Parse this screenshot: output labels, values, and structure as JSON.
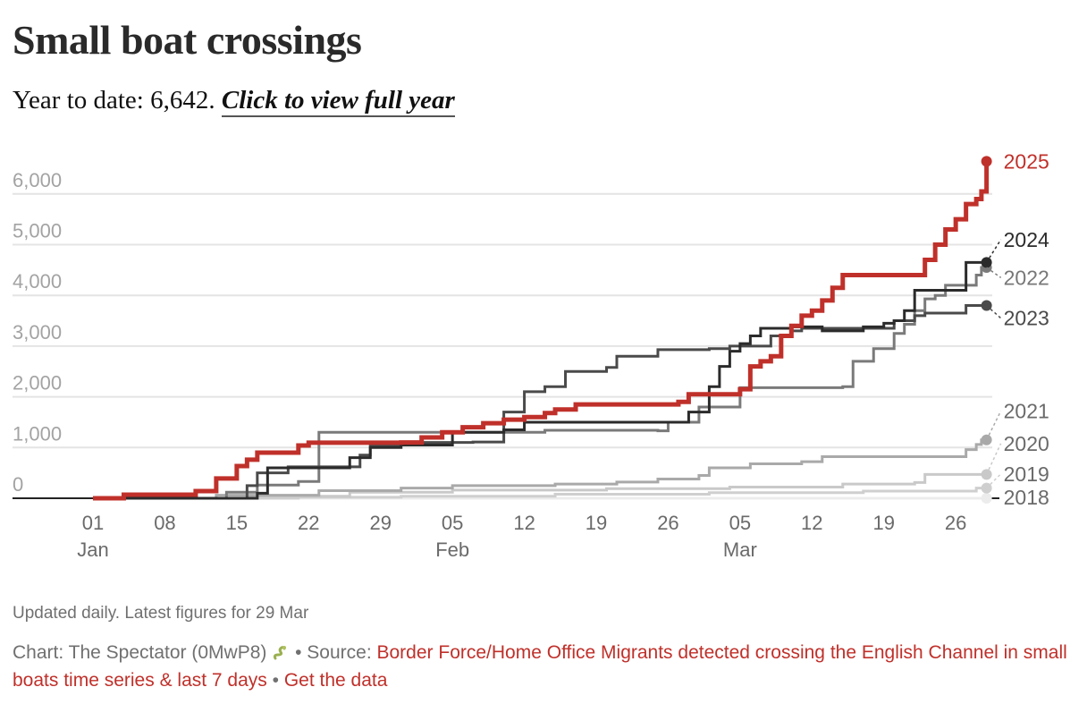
{
  "header": {
    "title": "Small boat crossings",
    "ytd_prefix": "Year to date: 6,642.",
    "view_full_year_link": "Click to view full year"
  },
  "footer": {
    "note": "Updated daily. Latest figures for 29 Mar",
    "credit_prefix": "Chart: The Spectator (0MwP8)",
    "snake_icon": "snake-icon",
    "source_label": "• Source:",
    "source_link": "Border Force/Home Office Migrants detected crossing the English Channel in small boats time series & last 7 days",
    "separator": "•",
    "get_data_link": "Get the data"
  },
  "chart_data": {
    "type": "line",
    "title": "Small boat crossings",
    "subtitle": "Year to date: 6,642",
    "xlabel": "",
    "ylabel": "",
    "step": true,
    "x_unit": "day of year (0 = 01 Jan)",
    "xlim": [
      0,
      87
    ],
    "ylim": [
      0,
      6500
    ],
    "grid": true,
    "yticks": [
      0,
      1000,
      2000,
      3000,
      4000,
      5000,
      6000
    ],
    "ytick_labels": [
      "0",
      "1,000",
      "2,000",
      "3,000",
      "4,000",
      "5,000",
      "6,000"
    ],
    "xticks": [
      {
        "day": 0,
        "label": "01",
        "month": "Jan"
      },
      {
        "day": 7,
        "label": "08",
        "month": ""
      },
      {
        "day": 14,
        "label": "15",
        "month": ""
      },
      {
        "day": 21,
        "label": "22",
        "month": ""
      },
      {
        "day": 28,
        "label": "29",
        "month": ""
      },
      {
        "day": 35,
        "label": "05",
        "month": "Feb"
      },
      {
        "day": 42,
        "label": "12",
        "month": ""
      },
      {
        "day": 49,
        "label": "19",
        "month": ""
      },
      {
        "day": 56,
        "label": "26",
        "month": ""
      },
      {
        "day": 63,
        "label": "05",
        "month": "Mar"
      },
      {
        "day": 70,
        "label": "12",
        "month": ""
      },
      {
        "day": 77,
        "label": "19",
        "month": ""
      },
      {
        "day": 84,
        "label": "26",
        "month": ""
      }
    ],
    "legend_placement": "right-end-labels",
    "series": [
      {
        "name": "2018",
        "color": "#ececec",
        "end_value": 0,
        "label_value": 20,
        "points": [
          [
            0,
            0
          ],
          [
            87,
            0
          ]
        ]
      },
      {
        "name": "2019",
        "color": "#cfcfcf",
        "end_value": 200,
        "label_value": 480,
        "points": [
          [
            0,
            0
          ],
          [
            20,
            20
          ],
          [
            30,
            40
          ],
          [
            45,
            80
          ],
          [
            60,
            110
          ],
          [
            75,
            140
          ],
          [
            86,
            200
          ],
          [
            87,
            200
          ]
        ]
      },
      {
        "name": "2020",
        "color": "#c9c9c9",
        "end_value": 470,
        "label_value": 1080,
        "points": [
          [
            0,
            0
          ],
          [
            15,
            40
          ],
          [
            25,
            120
          ],
          [
            35,
            160
          ],
          [
            50,
            190
          ],
          [
            62,
            220
          ],
          [
            73,
            280
          ],
          [
            80,
            310
          ],
          [
            81,
            470
          ],
          [
            87,
            470
          ]
        ]
      },
      {
        "name": "2021",
        "color": "#a9a9a9",
        "end_value": 1150,
        "label_value": 1720,
        "points": [
          [
            0,
            0
          ],
          [
            12,
            60
          ],
          [
            22,
            150
          ],
          [
            30,
            200
          ],
          [
            35,
            250
          ],
          [
            45,
            280
          ],
          [
            51,
            320
          ],
          [
            55,
            380
          ],
          [
            59,
            450
          ],
          [
            60,
            600
          ],
          [
            64,
            680
          ],
          [
            69,
            720
          ],
          [
            71,
            820
          ],
          [
            84,
            820
          ],
          [
            85,
            960
          ],
          [
            86,
            1060
          ],
          [
            86.5,
            1150
          ],
          [
            87,
            1150
          ]
        ]
      },
      {
        "name": "2022",
        "color": "#7a7a7a",
        "end_value": 4550,
        "label_value": 4350,
        "points": [
          [
            0,
            0
          ],
          [
            13,
            120
          ],
          [
            16,
            260
          ],
          [
            20,
            330
          ],
          [
            22,
            1300
          ],
          [
            36,
            1300
          ],
          [
            44,
            1340
          ],
          [
            55,
            1330
          ],
          [
            56,
            1500
          ],
          [
            59,
            1800
          ],
          [
            63,
            2180
          ],
          [
            73,
            2200
          ],
          [
            74,
            2700
          ],
          [
            76,
            2950
          ],
          [
            78,
            3250
          ],
          [
            79,
            3430
          ],
          [
            80,
            3700
          ],
          [
            81,
            3930
          ],
          [
            82,
            4000
          ],
          [
            83,
            4200
          ],
          [
            86,
            4400
          ],
          [
            86.5,
            4550
          ],
          [
            87,
            4550
          ]
        ]
      },
      {
        "name": "2023",
        "color": "#4a4a4a",
        "end_value": 3800,
        "label_value": 3550,
        "points": [
          [
            0,
            0
          ],
          [
            15,
            250
          ],
          [
            16,
            500
          ],
          [
            19,
            620
          ],
          [
            25,
            620
          ],
          [
            26,
            850
          ],
          [
            27,
            1050
          ],
          [
            31,
            1100
          ],
          [
            37,
            1110
          ],
          [
            40,
            1700
          ],
          [
            42,
            2100
          ],
          [
            44,
            2200
          ],
          [
            46,
            2500
          ],
          [
            50,
            2580
          ],
          [
            51,
            2800
          ],
          [
            55,
            2930
          ],
          [
            60,
            2950
          ],
          [
            62,
            3000
          ],
          [
            65,
            3000
          ],
          [
            66,
            3200
          ],
          [
            68,
            3300
          ],
          [
            69,
            3350
          ],
          [
            77,
            3350
          ],
          [
            78,
            3500
          ],
          [
            80,
            3600
          ],
          [
            81,
            3650
          ],
          [
            84,
            3650
          ],
          [
            85,
            3800
          ],
          [
            87,
            3800
          ]
        ]
      },
      {
        "name": "2024",
        "color": "#2b2b2b",
        "end_value": 4650,
        "label_value": 5100,
        "points": [
          [
            0,
            0
          ],
          [
            16,
            100
          ],
          [
            17,
            600
          ],
          [
            24,
            600
          ],
          [
            25,
            800
          ],
          [
            27,
            1000
          ],
          [
            30,
            1050
          ],
          [
            35,
            1300
          ],
          [
            40,
            1350
          ],
          [
            42,
            1500
          ],
          [
            56,
            1500
          ],
          [
            58,
            1700
          ],
          [
            60,
            2200
          ],
          [
            61,
            2600
          ],
          [
            62,
            2900
          ],
          [
            63,
            3050
          ],
          [
            64,
            3200
          ],
          [
            65,
            3350
          ],
          [
            68,
            3380
          ],
          [
            71,
            3300
          ],
          [
            75,
            3380
          ],
          [
            77,
            3450
          ],
          [
            78,
            3500
          ],
          [
            79,
            3700
          ],
          [
            80,
            4100
          ],
          [
            84,
            4100
          ],
          [
            85,
            4650
          ],
          [
            87,
            4650
          ]
        ]
      },
      {
        "name": "2025",
        "color": "#c0302a",
        "end_value": 6642,
        "label_value": 6642,
        "points": [
          [
            0,
            0
          ],
          [
            3,
            70
          ],
          [
            10,
            140
          ],
          [
            12,
            390
          ],
          [
            14,
            635
          ],
          [
            15,
            760
          ],
          [
            16,
            900
          ],
          [
            20,
            1040
          ],
          [
            21,
            1095
          ],
          [
            30,
            1100
          ],
          [
            32,
            1200
          ],
          [
            34,
            1300
          ],
          [
            36,
            1400
          ],
          [
            38,
            1480
          ],
          [
            40,
            1550
          ],
          [
            42,
            1600
          ],
          [
            44,
            1680
          ],
          [
            45,
            1750
          ],
          [
            47,
            1850
          ],
          [
            57,
            1900
          ],
          [
            58,
            2050
          ],
          [
            63,
            2150
          ],
          [
            64,
            2600
          ],
          [
            65,
            2700
          ],
          [
            66,
            2800
          ],
          [
            67,
            3200
          ],
          [
            68,
            3400
          ],
          [
            69,
            3600
          ],
          [
            70,
            3700
          ],
          [
            71,
            3900
          ],
          [
            72,
            4150
          ],
          [
            73,
            4400
          ],
          [
            80,
            4400
          ],
          [
            81,
            4700
          ],
          [
            82,
            5000
          ],
          [
            83,
            5300
          ],
          [
            84,
            5500
          ],
          [
            85,
            5800
          ],
          [
            86,
            5900
          ],
          [
            86.5,
            6050
          ],
          [
            87,
            6642
          ]
        ]
      }
    ]
  }
}
